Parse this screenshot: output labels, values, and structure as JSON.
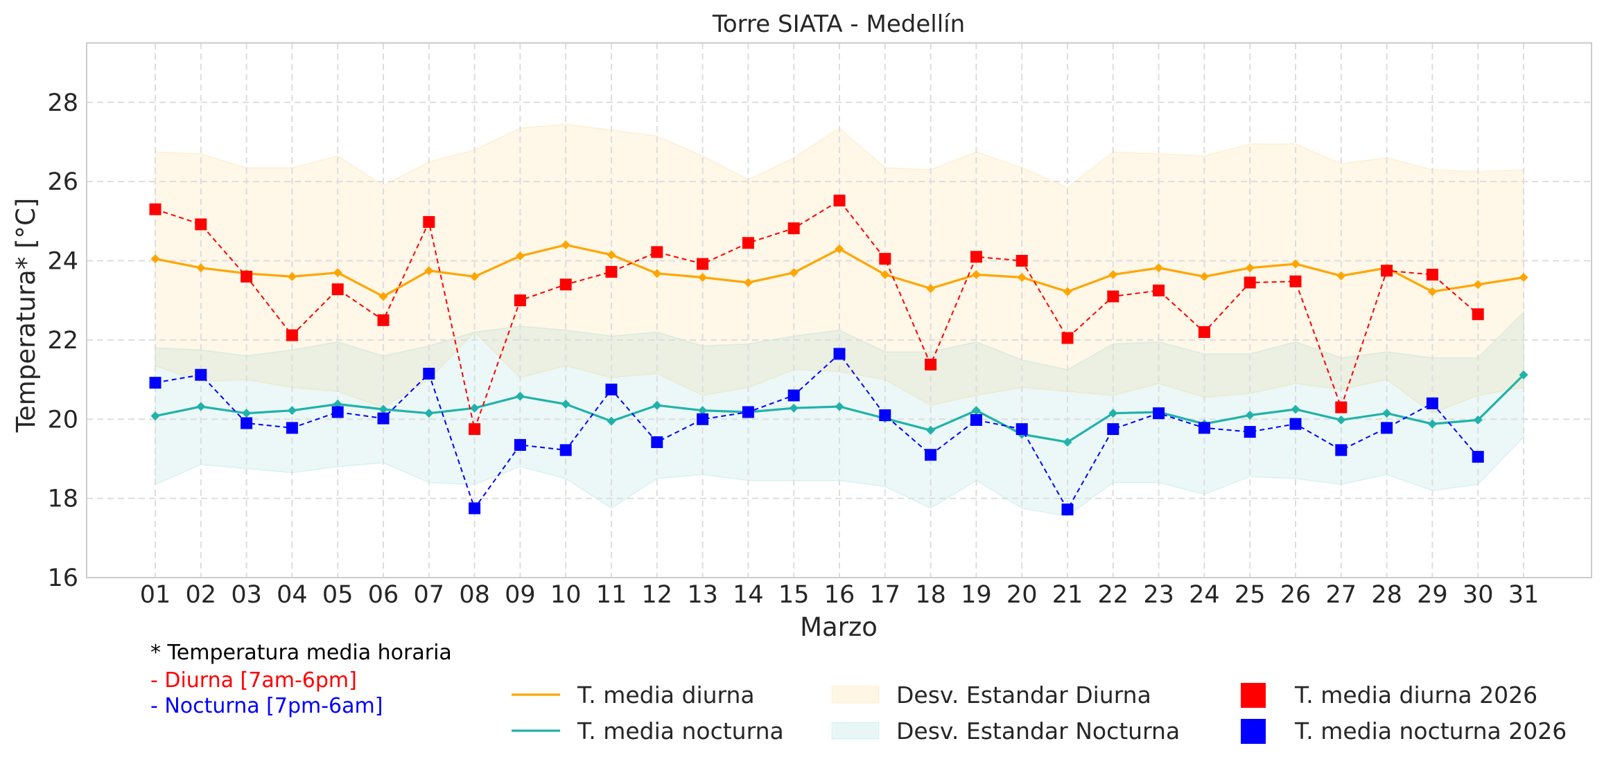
{
  "chart_data": {
    "type": "line",
    "title": "Torre SIATA - Medellín",
    "xlabel": "Marzo",
    "ylabel": "Temperatura* [°C]",
    "ylim": [
      16,
      29.5
    ],
    "yticks": [
      16,
      18,
      20,
      22,
      24,
      26,
      28
    ],
    "grid": true,
    "categories": [
      "01",
      "02",
      "03",
      "04",
      "05",
      "06",
      "07",
      "08",
      "09",
      "10",
      "11",
      "12",
      "13",
      "14",
      "15",
      "16",
      "17",
      "18",
      "19",
      "20",
      "21",
      "22",
      "23",
      "24",
      "25",
      "26",
      "27",
      "28",
      "29",
      "30",
      "31"
    ],
    "bands": [
      {
        "name": "Desv. Estandar Diurna",
        "color": "#ffa500",
        "upper": [
          26.75,
          26.7,
          26.35,
          26.35,
          26.65,
          25.9,
          26.5,
          26.8,
          27.35,
          27.45,
          27.3,
          27.15,
          26.65,
          26.05,
          26.6,
          27.35,
          26.35,
          26.3,
          26.75,
          26.35,
          25.85,
          26.75,
          26.7,
          26.65,
          26.95,
          26.95,
          26.45,
          26.6,
          26.3,
          26.25,
          26.3
        ],
        "lower": [
          21.35,
          20.95,
          21.0,
          20.8,
          20.7,
          20.3,
          21.0,
          22.2,
          21.05,
          21.35,
          21.05,
          21.15,
          20.6,
          20.8,
          21.25,
          21.2,
          21.0,
          20.35,
          20.6,
          20.8,
          20.7,
          20.6,
          20.9,
          20.55,
          20.65,
          20.9,
          20.75,
          21.0,
          20.15,
          20.6,
          20.8
        ]
      },
      {
        "name": "Desv. Estandar Nocturna",
        "color": "#20b2aa",
        "upper": [
          21.8,
          21.75,
          21.6,
          21.75,
          21.95,
          21.6,
          21.85,
          22.2,
          22.35,
          22.25,
          22.1,
          22.2,
          21.85,
          21.9,
          22.1,
          22.25,
          21.7,
          21.7,
          21.95,
          21.5,
          21.25,
          21.9,
          21.95,
          21.65,
          21.65,
          21.95,
          21.55,
          21.7,
          21.55,
          21.55,
          22.7
        ],
        "lower": [
          18.35,
          18.85,
          18.75,
          18.65,
          18.8,
          18.9,
          18.4,
          18.35,
          18.8,
          18.5,
          17.75,
          18.5,
          18.6,
          18.45,
          18.45,
          18.45,
          18.3,
          17.75,
          18.45,
          17.75,
          17.55,
          18.4,
          18.4,
          18.1,
          18.55,
          18.5,
          18.35,
          18.6,
          18.2,
          18.35,
          19.55
        ]
      }
    ],
    "series": [
      {
        "name": "T. media diurna",
        "color": "#ffa500",
        "style": "solid",
        "marker": "diamond",
        "values": [
          24.05,
          23.82,
          23.68,
          23.6,
          23.7,
          23.1,
          23.75,
          23.6,
          24.12,
          24.4,
          24.15,
          23.68,
          23.58,
          23.45,
          23.7,
          24.3,
          23.65,
          23.3,
          23.65,
          23.58,
          23.22,
          23.65,
          23.82,
          23.6,
          23.82,
          23.92,
          23.62,
          23.82,
          23.22,
          23.4,
          23.58
        ]
      },
      {
        "name": "T. media nocturna",
        "color": "#20b2aa",
        "style": "solid",
        "marker": "diamond",
        "values": [
          20.08,
          20.32,
          20.15,
          20.22,
          20.38,
          20.25,
          20.15,
          20.28,
          20.58,
          20.38,
          19.95,
          20.35,
          20.22,
          20.18,
          20.28,
          20.32,
          20.02,
          19.72,
          20.22,
          19.62,
          19.42,
          20.15,
          20.18,
          19.88,
          20.1,
          20.25,
          19.98,
          20.15,
          19.88,
          19.98,
          21.12
        ]
      },
      {
        "name": "T. media diurna 2026",
        "color": "#ff0000",
        "style": "dashed",
        "marker": "square",
        "values": [
          25.3,
          24.92,
          23.6,
          22.12,
          23.28,
          22.5,
          24.98,
          19.75,
          23.0,
          23.4,
          23.72,
          24.22,
          23.92,
          24.45,
          24.82,
          25.52,
          24.05,
          21.38,
          24.1,
          24.0,
          22.05,
          23.1,
          23.25,
          22.2,
          23.45,
          23.48,
          20.3,
          23.75,
          23.65,
          22.65,
          null
        ]
      },
      {
        "name": "T. media nocturna 2026",
        "color": "#0000ff",
        "style": "dashed",
        "marker": "square",
        "values": [
          20.92,
          21.12,
          19.9,
          19.78,
          20.18,
          20.02,
          21.15,
          17.75,
          19.35,
          19.22,
          20.75,
          19.42,
          20.0,
          20.18,
          20.6,
          21.65,
          20.1,
          19.1,
          19.98,
          19.75,
          17.72,
          19.75,
          20.15,
          19.78,
          19.68,
          19.88,
          19.22,
          19.78,
          20.4,
          19.05,
          null
        ]
      }
    ],
    "notes": {
      "line1": "* Temperatura media horaria",
      "line2": "- Diurna [7am-6pm]",
      "line3": "- Nocturna [7pm-6am]"
    },
    "legend_position": "bottom-right"
  }
}
